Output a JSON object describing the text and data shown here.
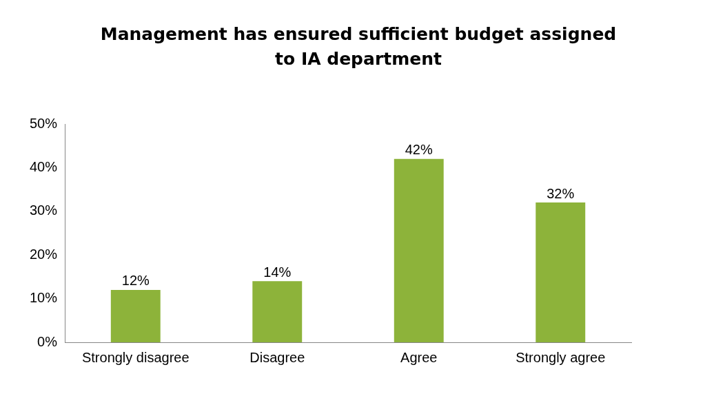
{
  "chart_data": {
    "type": "bar",
    "title": "Management has ensured sufficient budget assigned to IA department",
    "categories": [
      "Strongly disagree",
      "Disagree",
      "Agree",
      "Strongly agree"
    ],
    "values": [
      12,
      14,
      42,
      32
    ],
    "color": "#8db33a",
    "value_labels": [
      "12%",
      "14%",
      "42%",
      "32%"
    ],
    "ylim": [
      0,
      50
    ],
    "yticks": [
      {
        "value": 0,
        "label": "0%"
      },
      {
        "value": 10,
        "label": "10%"
      },
      {
        "value": 20,
        "label": "20%"
      },
      {
        "value": 30,
        "label": "30%"
      },
      {
        "value": 40,
        "label": "40%"
      },
      {
        "value": 50,
        "label": "50%"
      }
    ],
    "grid": false,
    "legend": false
  }
}
